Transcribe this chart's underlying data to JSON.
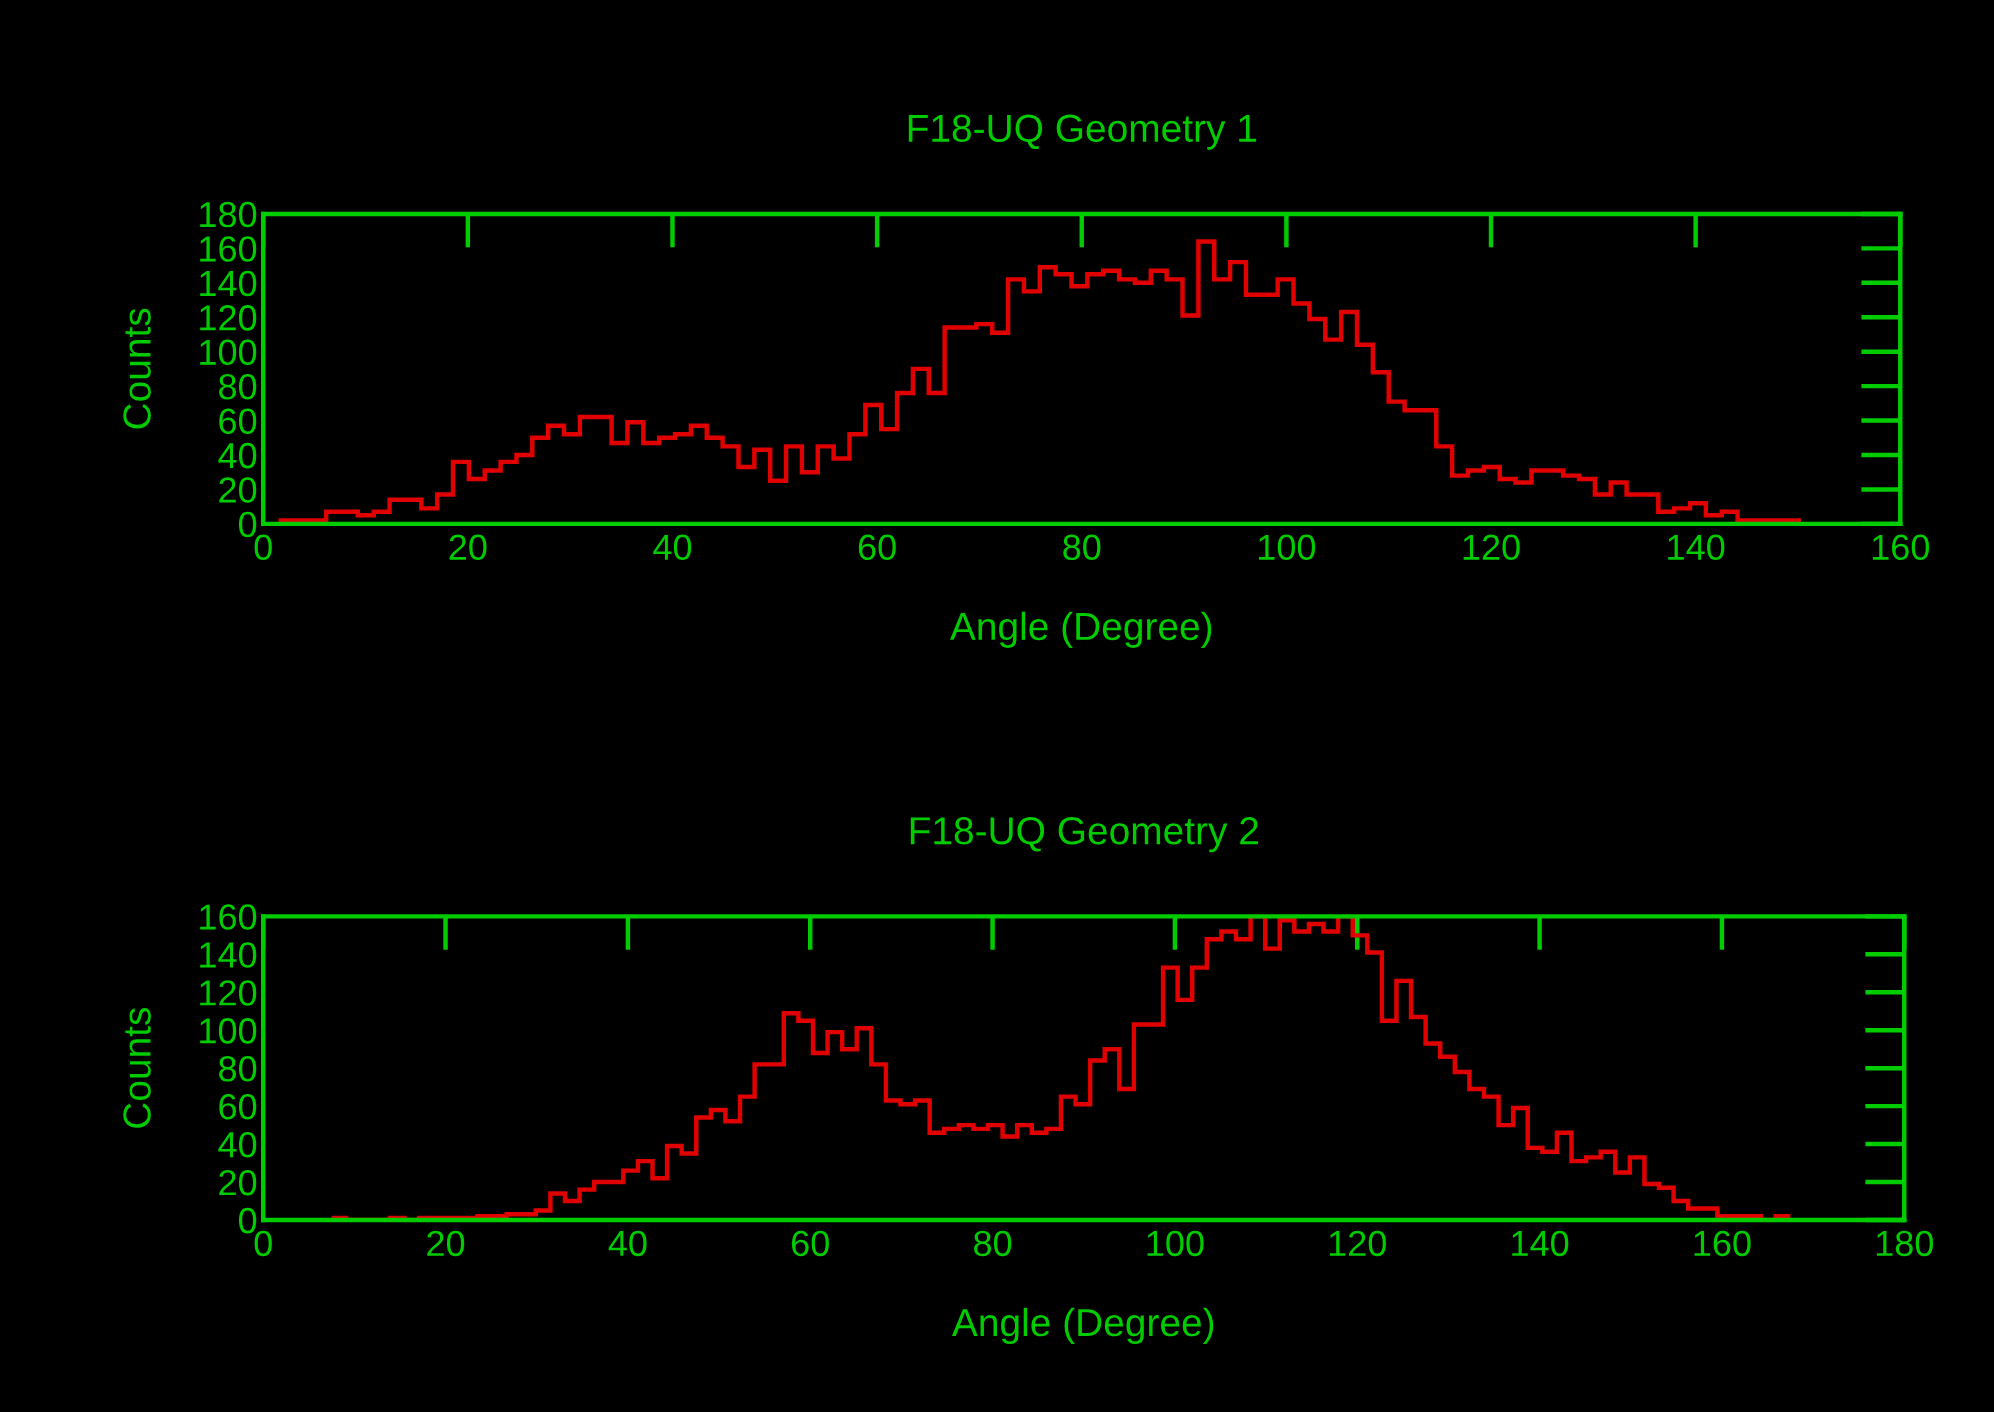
{
  "chart_data": [
    {
      "type": "histogram",
      "title": "F18-UQ Geometry 1",
      "xlabel": "Angle (Degree)",
      "ylabel": "Counts",
      "color": "#e00000",
      "bins": [
        1.5,
        3.05,
        4.6,
        6.15,
        7.7,
        9.25,
        10.8,
        12.35,
        13.9,
        15.45,
        17,
        18.55,
        20.1,
        21.65,
        23.2,
        24.75,
        26.3,
        27.85,
        29.4,
        30.95,
        32.5,
        34.05,
        35.6,
        37.15,
        38.7,
        40.25,
        41.8,
        43.35,
        44.9,
        46.45,
        48,
        49.55,
        51.1,
        52.65,
        54.2,
        55.75,
        57.3,
        58.85,
        60.4,
        61.95,
        63.5,
        65.05,
        66.6,
        68.15,
        69.7,
        71.25,
        72.8,
        74.35,
        75.9,
        77.45,
        79,
        80.55,
        82.1,
        83.65,
        85.2,
        86.75,
        88.3,
        89.85,
        91.4,
        92.95,
        94.5,
        96.05,
        97.6,
        99.15,
        100.7,
        102.25,
        103.8,
        105.35,
        106.9,
        108.45,
        110,
        111.55,
        113.1,
        114.65,
        116.2,
        117.75,
        119.3,
        120.85,
        122.4,
        123.95,
        125.5,
        127.05,
        128.6,
        130.15,
        131.7,
        133.25,
        134.8,
        136.35,
        137.9,
        139.45,
        141,
        142.55,
        144.1,
        145.65,
        147.2,
        148.75,
        150.3
      ],
      "values": [
        2,
        2,
        2,
        7,
        7,
        5,
        7,
        14,
        14,
        9,
        17,
        36,
        26,
        31,
        36,
        40,
        50,
        57,
        52,
        62,
        62,
        47,
        59,
        47,
        50,
        52,
        57,
        50,
        45,
        33,
        43,
        25,
        45,
        30,
        45,
        38,
        52,
        69,
        55,
        76,
        90,
        76,
        114,
        114,
        116,
        111,
        142,
        135,
        149,
        145,
        138,
        145,
        147,
        142,
        140,
        147,
        142,
        121,
        164,
        142,
        152,
        133,
        133,
        142,
        128,
        119,
        107,
        123,
        104,
        88,
        71,
        66,
        66,
        45,
        28,
        31,
        33,
        26,
        24,
        31,
        31,
        28,
        26,
        17,
        24,
        17,
        17,
        7,
        9,
        12,
        5,
        7,
        2,
        2,
        2,
        2
      ],
      "xlim": [
        0,
        160
      ],
      "xticks": [
        0,
        20,
        40,
        60,
        80,
        100,
        120,
        140,
        160
      ],
      "ylim": [
        0,
        180
      ],
      "yticks": [
        0,
        20,
        40,
        60,
        80,
        100,
        120,
        140,
        160,
        180
      ]
    },
    {
      "type": "histogram",
      "title": "F18-UQ Geometry 2",
      "xlabel": "Angle (Degree)",
      "ylabel": "Counts",
      "color": "#e00000",
      "bins": [
        7.5,
        9.1,
        10.7,
        12.3,
        13.9,
        15.5,
        17.1,
        18.7,
        20.3,
        21.9,
        23.5,
        25.1,
        26.7,
        28.3,
        29.9,
        31.5,
        33.1,
        34.7,
        36.3,
        37.9,
        39.5,
        41.1,
        42.7,
        44.3,
        45.9,
        47.5,
        49.1,
        50.7,
        52.3,
        53.9,
        55.5,
        57.1,
        58.7,
        60.3,
        61.9,
        63.5,
        65.1,
        66.7,
        68.3,
        69.9,
        71.5,
        73.1,
        74.7,
        76.3,
        77.9,
        79.5,
        81.1,
        82.7,
        84.3,
        85.9,
        87.5,
        89.1,
        90.7,
        92.3,
        93.9,
        95.5,
        97.1,
        98.7,
        100.3,
        101.9,
        103.5,
        105.1,
        106.7,
        108.3,
        109.9,
        111.5,
        113.1,
        114.7,
        116.3,
        117.9,
        119.5,
        121.1,
        122.7,
        124.3,
        125.9,
        127.5,
        129.1,
        130.7,
        132.3,
        133.9,
        135.5,
        137.1,
        138.7,
        140.3,
        141.9,
        143.5,
        145.1,
        146.7,
        148.3,
        149.9,
        151.5,
        153.1,
        154.7,
        156.3,
        157.9,
        159.5,
        161.1,
        162.7,
        164.3,
        165.9,
        167.5
      ],
      "values": [
        1,
        0,
        0,
        0,
        1,
        0,
        1,
        1,
        1,
        1,
        2,
        2,
        3,
        3,
        5,
        14,
        10,
        16,
        20,
        20,
        26,
        31,
        22,
        39,
        35,
        54,
        58,
        52,
        65,
        82,
        82,
        109,
        105,
        88,
        99,
        90,
        101,
        82,
        63,
        61,
        63,
        46,
        48,
        50,
        48,
        50,
        44,
        50,
        46,
        48,
        65,
        61,
        84,
        90,
        69,
        103,
        103,
        133,
        116,
        133,
        148,
        152,
        148,
        160,
        143,
        158,
        152,
        156,
        152,
        160,
        150,
        141,
        105,
        126,
        107,
        93,
        86,
        78,
        69,
        65,
        50,
        59,
        38,
        36,
        46,
        31,
        33,
        36,
        25,
        33,
        19,
        17,
        10,
        6,
        6,
        2,
        2,
        2,
        0,
        2
      ],
      "xlim": [
        0,
        180
      ],
      "xticks": [
        0,
        20,
        40,
        60,
        80,
        100,
        120,
        140,
        160,
        180
      ],
      "ylim": [
        0,
        160
      ],
      "yticks": [
        0,
        20,
        40,
        60,
        80,
        100,
        120,
        140,
        160
      ]
    }
  ]
}
